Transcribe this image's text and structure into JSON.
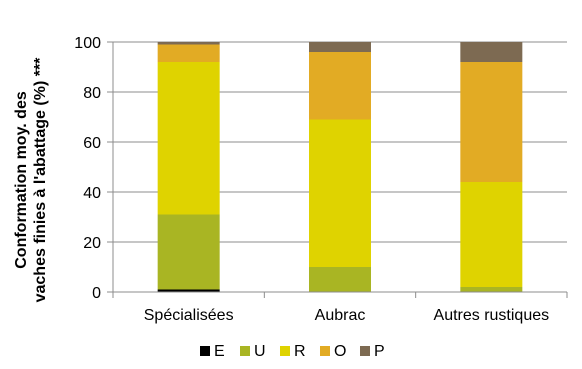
{
  "chart_data": {
    "type": "bar",
    "stacked": true,
    "categories": [
      "Spécialisées",
      "Aubrac",
      "Autres rustiques"
    ],
    "series": [
      {
        "name": "E",
        "color": "#000000",
        "values": [
          1,
          0,
          0
        ]
      },
      {
        "name": "U",
        "color": "#a9b523",
        "values": [
          30,
          10,
          2
        ]
      },
      {
        "name": "R",
        "color": "#dfd300",
        "values": [
          61,
          59,
          42
        ]
      },
      {
        "name": "O",
        "color": "#e2ab24",
        "values": [
          7,
          27,
          48
        ]
      },
      {
        "name": "P",
        "color": "#7d6a52",
        "values": [
          1,
          4,
          8
        ]
      }
    ],
    "title": "",
    "xlabel": "",
    "ylabel_line1": "Conformation moy. des",
    "ylabel_line2": "vaches finies à l'abattage (%) ***",
    "ylim": [
      0,
      100
    ],
    "yticks": [
      0,
      20,
      40,
      60,
      80,
      100
    ],
    "grid": true,
    "legend": "bottom"
  }
}
